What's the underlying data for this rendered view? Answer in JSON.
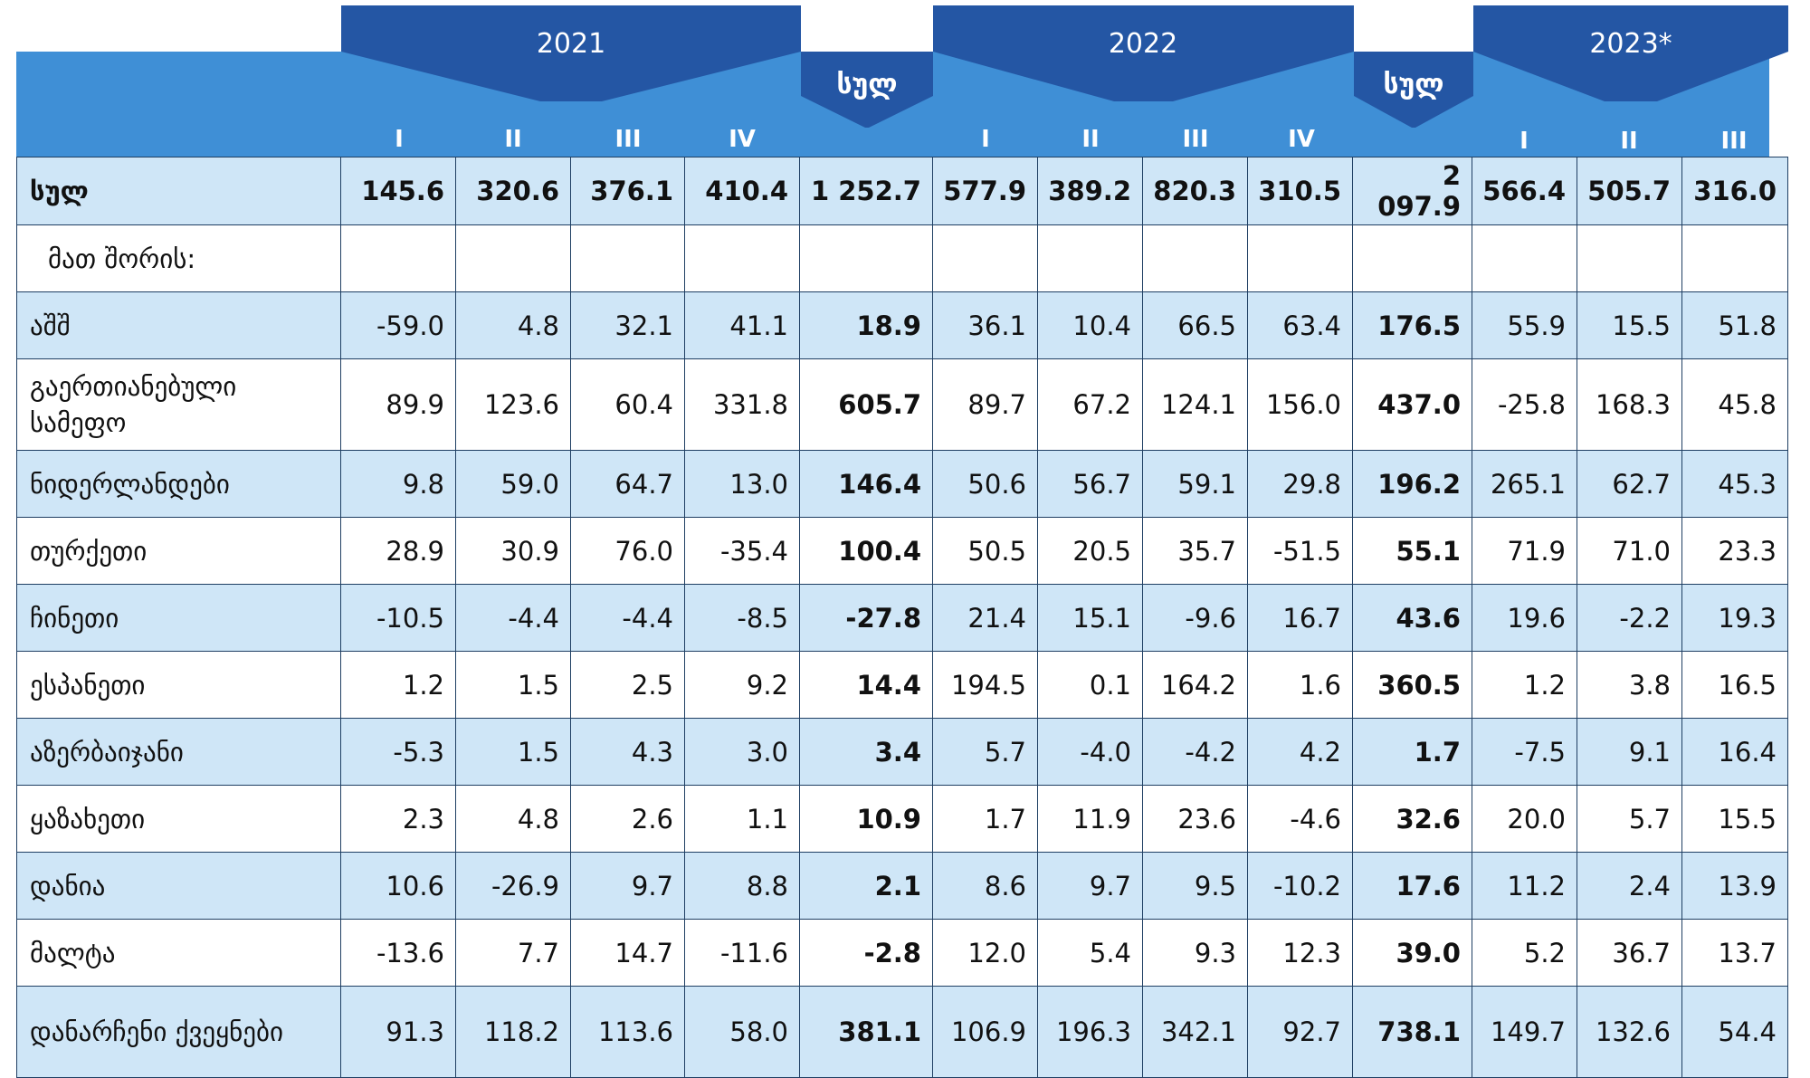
{
  "header": {
    "years": [
      {
        "key": "y2021",
        "label": "2021"
      },
      {
        "key": "y2022",
        "label": "2022"
      },
      {
        "key": "y2023",
        "label": "2023*"
      }
    ],
    "total_label": "სულ",
    "quarter_labels": [
      "I",
      "II",
      "III",
      "IV"
    ],
    "colors": {
      "dark_blue": "#2456a4",
      "mid_blue": "#3f8fd6",
      "light_row": "#cfe6f7",
      "border": "#1f3f63"
    }
  },
  "rows": [
    {
      "label": "სულ",
      "kind": "total",
      "values": [
        "145.6",
        "320.6",
        "376.1",
        "410.4",
        "1 252.7",
        "577.9",
        "389.2",
        "820.3",
        "310.5",
        "2 097.9",
        "566.4",
        "505.7",
        "316.0"
      ]
    },
    {
      "label": "მათ შორის:",
      "kind": "sub",
      "values": [
        "",
        "",
        "",
        "",
        "",
        "",
        "",
        "",
        "",
        "",
        "",
        "",
        ""
      ]
    },
    {
      "label": "აშშ",
      "kind": "country",
      "values": [
        "-59.0",
        "4.8",
        "32.1",
        "41.1",
        "18.9",
        "36.1",
        "10.4",
        "66.5",
        "63.4",
        "176.5",
        "55.9",
        "15.5",
        "51.8"
      ]
    },
    {
      "label": "გაერთიანებული სამეფო",
      "kind": "country",
      "values": [
        "89.9",
        "123.6",
        "60.4",
        "331.8",
        "605.7",
        "89.7",
        "67.2",
        "124.1",
        "156.0",
        "437.0",
        "-25.8",
        "168.3",
        "45.8"
      ]
    },
    {
      "label": "ნიდერლანდები",
      "kind": "country",
      "values": [
        "9.8",
        "59.0",
        "64.7",
        "13.0",
        "146.4",
        "50.6",
        "56.7",
        "59.1",
        "29.8",
        "196.2",
        "265.1",
        "62.7",
        "45.3"
      ]
    },
    {
      "label": "თურქეთი",
      "kind": "country",
      "values": [
        "28.9",
        "30.9",
        "76.0",
        "-35.4",
        "100.4",
        "50.5",
        "20.5",
        "35.7",
        "-51.5",
        "55.1",
        "71.9",
        "71.0",
        "23.3"
      ]
    },
    {
      "label": "ჩინეთი",
      "kind": "country",
      "values": [
        "-10.5",
        "-4.4",
        "-4.4",
        "-8.5",
        "-27.8",
        "21.4",
        "15.1",
        "-9.6",
        "16.7",
        "43.6",
        "19.6",
        "-2.2",
        "19.3"
      ]
    },
    {
      "label": "ესპანეთი",
      "kind": "country",
      "values": [
        "1.2",
        "1.5",
        "2.5",
        "9.2",
        "14.4",
        "194.5",
        "0.1",
        "164.2",
        "1.6",
        "360.5",
        "1.2",
        "3.8",
        "16.5"
      ]
    },
    {
      "label": "აზერბაიჯანი",
      "kind": "country",
      "values": [
        "-5.3",
        "1.5",
        "4.3",
        "3.0",
        "3.4",
        "5.7",
        "-4.0",
        "-4.2",
        "4.2",
        "1.7",
        "-7.5",
        "9.1",
        "16.4"
      ]
    },
    {
      "label": "ყაზახეთი",
      "kind": "country",
      "values": [
        "2.3",
        "4.8",
        "2.6",
        "1.1",
        "10.9",
        "1.7",
        "11.9",
        "23.6",
        "-4.6",
        "32.6",
        "20.0",
        "5.7",
        "15.5"
      ]
    },
    {
      "label": "დანია",
      "kind": "country",
      "values": [
        "10.6",
        "-26.9",
        "9.7",
        "8.8",
        "2.1",
        "8.6",
        "9.7",
        "9.5",
        "-10.2",
        "17.6",
        "11.2",
        "2.4",
        "13.9"
      ]
    },
    {
      "label": "მალტა",
      "kind": "country",
      "values": [
        "-13.6",
        "7.7",
        "14.7",
        "-11.6",
        "-2.8",
        "12.0",
        "5.4",
        "9.3",
        "12.3",
        "39.0",
        "5.2",
        "36.7",
        "13.7"
      ]
    },
    {
      "label": "დანარჩენი ქვეყნები",
      "kind": "country",
      "values": [
        "91.3",
        "118.2",
        "113.6",
        "58.0",
        "381.1",
        "106.9",
        "196.3",
        "342.1",
        "92.7",
        "738.1",
        "149.7",
        "132.6",
        "54.4"
      ]
    }
  ]
}
